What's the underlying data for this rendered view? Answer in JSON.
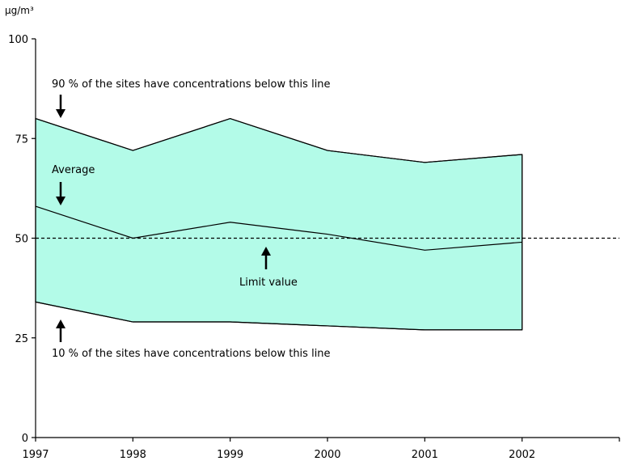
{
  "chart_data": {
    "type": "area",
    "title": "",
    "ylabel": "µg/m³",
    "xlabel": "",
    "x": [
      1997,
      1998,
      1999,
      2000,
      2001,
      2002
    ],
    "xlim": [
      1997,
      2003
    ],
    "ylim": [
      0,
      100
    ],
    "x_ticks": [
      "1997",
      "1998",
      "1999",
      "2000",
      "2001",
      "2002"
    ],
    "y_ticks": [
      "0",
      "25",
      "50",
      "75",
      "100"
    ],
    "series": [
      {
        "values": [
          80,
          72,
          80,
          72,
          69,
          71
        ]
      },
      {
        "values": [
          58,
          50,
          54,
          51,
          47,
          49
        ]
      },
      {
        "values": [
          34,
          29,
          29,
          28,
          27,
          27
        ]
      }
    ],
    "limit_value": 50,
    "band_color": "#b3fbe8",
    "line_color": "#000000",
    "grid": false,
    "annotations": {
      "p90": "90 % of the sites have concentrations below this line",
      "average": "Average",
      "limit": "Limit value",
      "p10": "10 % of the sites have concentrations below this line"
    }
  }
}
